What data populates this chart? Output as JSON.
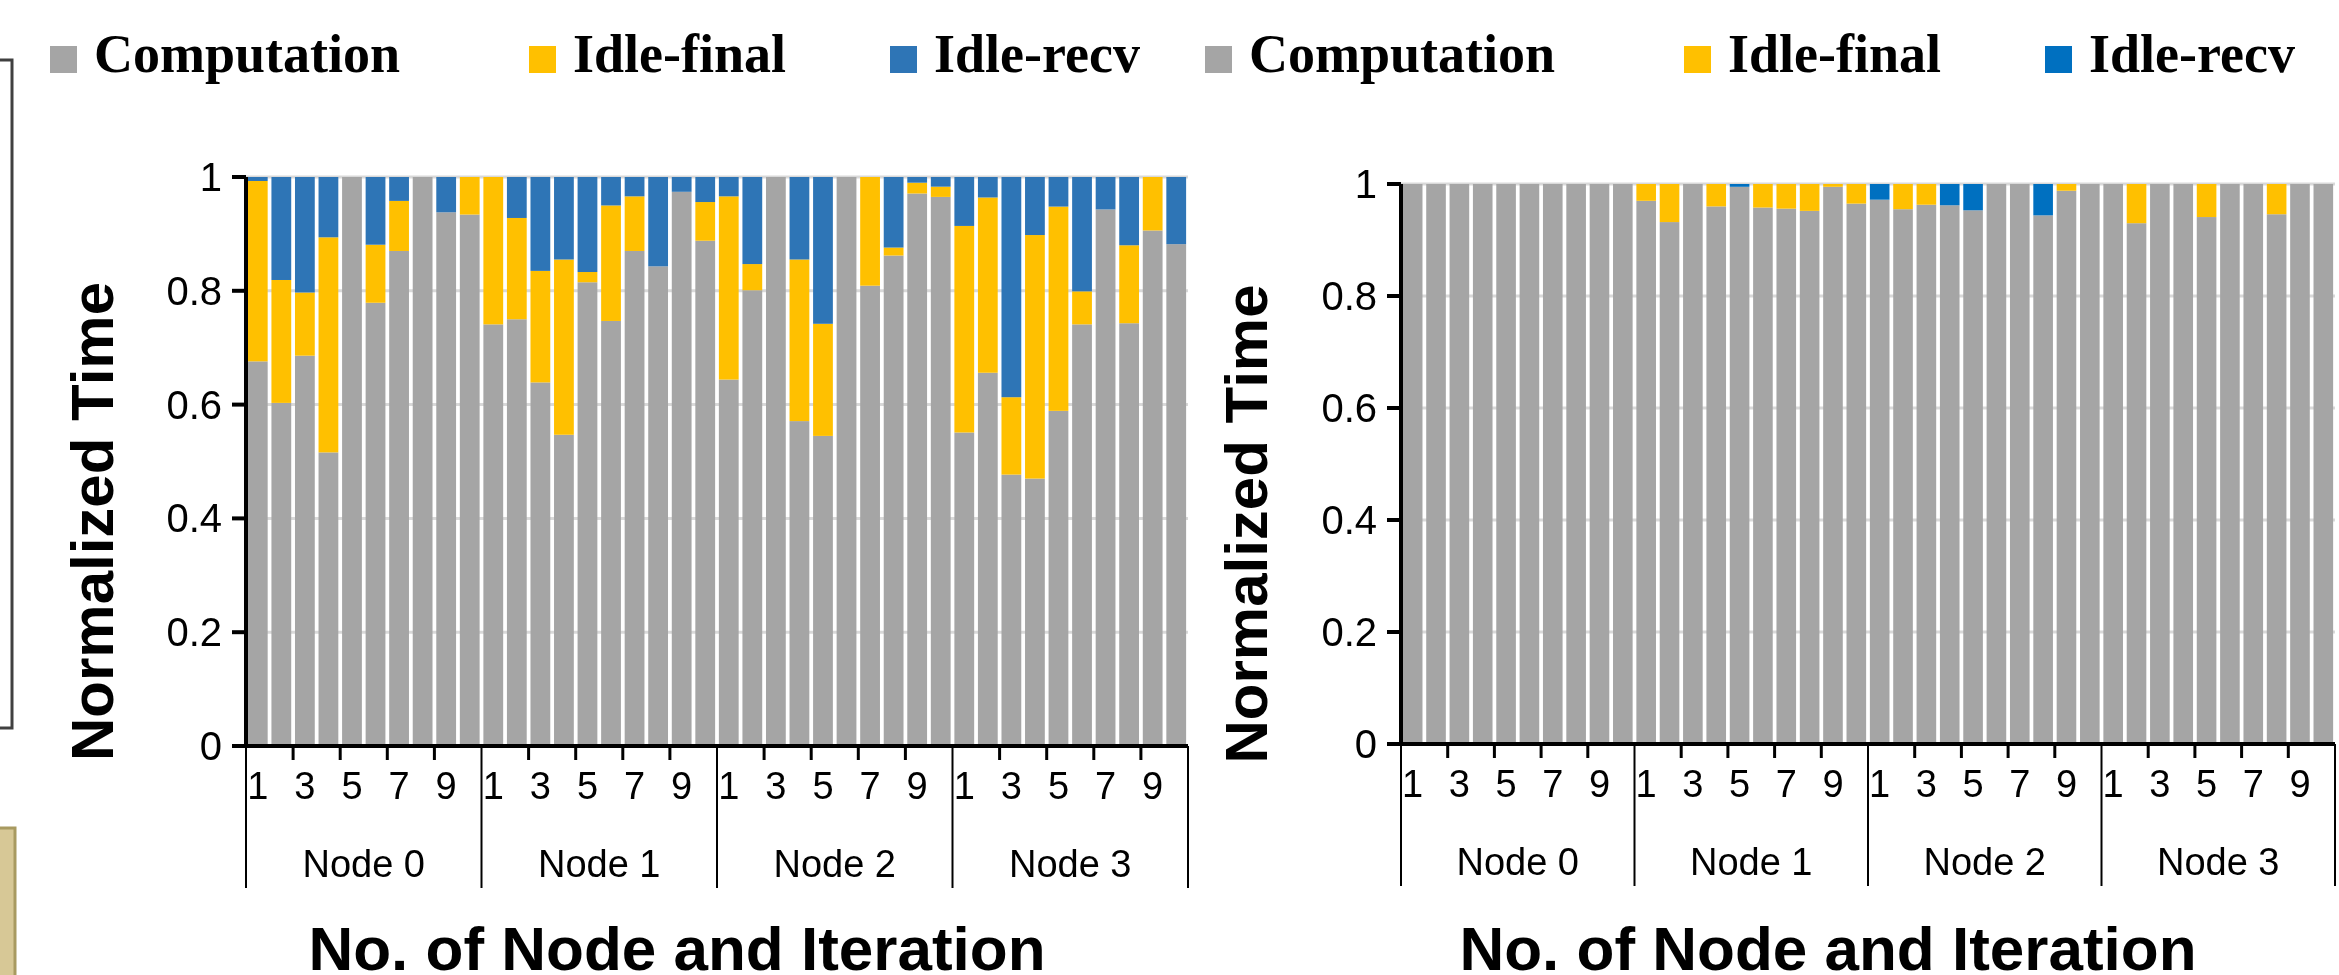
{
  "chart_data": [
    {
      "type": "bar",
      "stacked": true,
      "ylabel": "Normalized Time",
      "xlabel": "No. of Node and Iteration",
      "legend": "top",
      "grid": "y",
      "ylim": [
        0,
        1
      ],
      "yticks": [
        0,
        0.2,
        0.4,
        0.6,
        0.8,
        1
      ],
      "categories": [
        "1",
        null,
        "3",
        null,
        "5",
        null,
        "7",
        null,
        "9",
        null,
        "1",
        null,
        "3",
        null,
        "5",
        null,
        "7",
        null,
        "9",
        null,
        "1",
        null,
        "3",
        null,
        "5",
        null,
        "7",
        null,
        "9",
        null,
        "1",
        null,
        "3",
        null,
        "5",
        null,
        "7",
        null,
        "9",
        null
      ],
      "annotations": [
        "Node 0",
        "Node 1",
        "Node 2",
        "Node 3"
      ],
      "series": [
        {
          "name": "Computation",
          "color": "#a5a5a5",
          "values": [
            0.676,
            0.603,
            0.686,
            0.516,
            1,
            0.779,
            0.87,
            1,
            0.938,
            0.934,
            0.741,
            0.75,
            0.639,
            0.547,
            0.815,
            0.747,
            0.87,
            0.843,
            0.974,
            0.888,
            0.644,
            0.801,
            1,
            0.571,
            0.545,
            1,
            0.809,
            0.862,
            0.971,
            0.965,
            0.551,
            0.656,
            0.477,
            0.47,
            0.589,
            0.741,
            0.943,
            0.743,
            0.906,
            0.882
          ]
        },
        {
          "name": "Idle-final",
          "color": "#ffc000",
          "values": [
            0.317,
            0.216,
            0.111,
            0.378,
            0,
            0.102,
            0.088,
            0,
            0,
            0.066,
            0.259,
            0.178,
            0.196,
            0.308,
            0.018,
            0.203,
            0.096,
            0,
            0,
            0.068,
            0.322,
            0.046,
            0,
            0.284,
            0.197,
            0,
            0.191,
            0.014,
            0.019,
            0.018,
            0.363,
            0.308,
            0.136,
            0.428,
            0.359,
            0.058,
            0,
            0.137,
            0.094,
            0
          ]
        },
        {
          "name": "Idle-recv",
          "color": "#2e75b6",
          "values": [
            0.007,
            0.181,
            0.203,
            0.106,
            0,
            0.119,
            0.042,
            0,
            0.062,
            0,
            0,
            0.072,
            0.165,
            0.145,
            0.167,
            0.05,
            0.034,
            0.157,
            0.026,
            0.044,
            0.034,
            0.153,
            0,
            0.145,
            0.258,
            0,
            0,
            0.124,
            0.01,
            0.017,
            0.086,
            0.036,
            0.387,
            0.102,
            0.052,
            0.201,
            0.057,
            0.12,
            0,
            0.118
          ]
        }
      ]
    },
    {
      "type": "bar",
      "stacked": true,
      "ylabel": "Normalized Time",
      "xlabel": "No. of Node and Iteration",
      "legend": "top",
      "grid": "y",
      "ylim": [
        0,
        1
      ],
      "yticks": [
        0,
        0.2,
        0.4,
        0.6,
        0.8,
        1
      ],
      "categories": [
        "1",
        null,
        "3",
        null,
        "5",
        null,
        "7",
        null,
        "9",
        null,
        "1",
        null,
        "3",
        null,
        "5",
        null,
        "7",
        null,
        "9",
        null,
        "1",
        null,
        "3",
        null,
        "5",
        null,
        "7",
        null,
        "9",
        null,
        "1",
        null,
        "3",
        null,
        "5",
        null,
        "7",
        null,
        "9",
        null
      ],
      "annotations": [
        "Node 0",
        "Node 1",
        "Node 2",
        "Node 3"
      ],
      "series": [
        {
          "name": "Computation",
          "color": "#a5a5a5",
          "values": [
            1,
            1,
            1,
            1,
            1,
            1,
            1,
            1,
            1,
            1,
            0.97,
            0.932,
            1,
            0.96,
            0.995,
            0.958,
            0.956,
            0.952,
            0.995,
            0.965,
            0.972,
            0.955,
            0.963,
            0.962,
            0.953,
            1,
            1,
            0.944,
            0.988,
            1,
            1,
            0.93,
            1,
            1,
            0.941,
            1,
            1,
            0.946,
            1,
            1
          ]
        },
        {
          "name": "Idle-final",
          "color": "#ffc000",
          "values": [
            0,
            0,
            0,
            0,
            0,
            0,
            0,
            0,
            0,
            0,
            0.03,
            0.068,
            0,
            0.04,
            0,
            0.042,
            0.044,
            0.048,
            0.005,
            0.035,
            0,
            0.045,
            0.037,
            0,
            0,
            0,
            0,
            0,
            0.012,
            0,
            0,
            0.07,
            0,
            0,
            0.059,
            0,
            0,
            0.054,
            0,
            0
          ]
        },
        {
          "name": "Idle-recv",
          "color": "#0070c0",
          "values": [
            0,
            0,
            0,
            0,
            0,
            0,
            0,
            0,
            0,
            0,
            0,
            0,
            0,
            0,
            0.005,
            0,
            0,
            0,
            0,
            0,
            0.028,
            0,
            0,
            0.038,
            0.047,
            0,
            0,
            0.056,
            0,
            0,
            0,
            0,
            0,
            0,
            0,
            0,
            0,
            0,
            0,
            0
          ]
        }
      ]
    }
  ]
}
